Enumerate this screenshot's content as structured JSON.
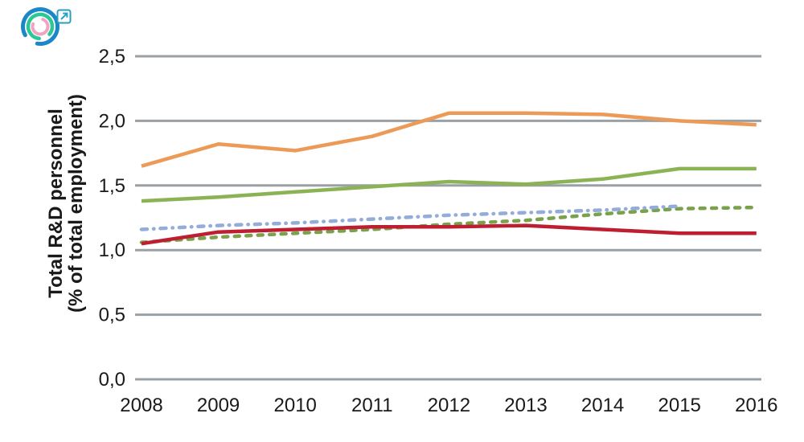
{
  "header": {
    "logo": {
      "outer_arc_color": "#1b86c8",
      "middle_arc_color": "#2cc796",
      "inner_arc_color": "#f2a3c1",
      "external_link_color": "#2a9fc0"
    }
  },
  "chart_data": {
    "type": "line",
    "title": "",
    "ylabel_lines": [
      "Total R&D personnel",
      "(% of total employment)"
    ],
    "x": [
      2008,
      2009,
      2010,
      2011,
      2012,
      2013,
      2014,
      2015,
      2016
    ],
    "x_tick_labels": [
      "2008",
      "2009",
      "2010",
      "2011",
      "2012",
      "2013",
      "2014",
      "2015",
      "2016"
    ],
    "y_ticks": [
      0,
      0.5,
      1,
      1.5,
      2,
      2.5
    ],
    "y_tick_labels": [
      "0,0",
      "0,5",
      "1,0",
      "1,5",
      "2,0",
      "2,5"
    ],
    "ylim": [
      0,
      2.5
    ],
    "grid": "horizontal-only",
    "gridline_color": "#9aa0a4",
    "text_color": "#1a1a1a",
    "legend_position": "none",
    "series": [
      {
        "name": "orange-solid",
        "style": "solid",
        "color": "#ec9a57",
        "values": [
          1.65,
          1.82,
          1.77,
          1.88,
          2.06,
          2.06,
          2.05,
          2.0,
          1.97
        ]
      },
      {
        "name": "green-solid",
        "style": "solid",
        "color": "#8bb356",
        "values": [
          1.38,
          1.41,
          1.45,
          1.49,
          1.53,
          1.51,
          1.55,
          1.63,
          1.63
        ]
      },
      {
        "name": "green-dashed",
        "style": "dashed",
        "color": "#79a24b",
        "values": [
          1.06,
          1.1,
          1.13,
          1.16,
          1.2,
          1.23,
          1.28,
          1.32,
          1.33
        ]
      },
      {
        "name": "blue-dash-dot",
        "style": "dash-dot",
        "color": "#93acd9",
        "values": [
          1.16,
          1.19,
          1.21,
          1.24,
          1.27,
          1.29,
          1.31,
          1.34,
          null
        ]
      },
      {
        "name": "red-solid",
        "style": "solid",
        "color": "#be1e32",
        "values": [
          1.05,
          1.14,
          1.16,
          1.18,
          1.18,
          1.19,
          1.16,
          1.13,
          1.13
        ]
      }
    ]
  }
}
